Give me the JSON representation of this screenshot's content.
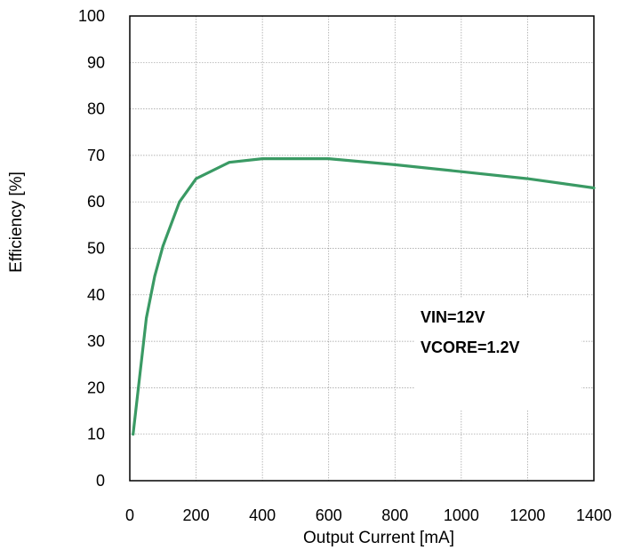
{
  "chart_data": {
    "type": "line",
    "title": "",
    "xlabel": "Output Current [mA]",
    "ylabel": "Efficiency [%]",
    "xlim": [
      0,
      1400
    ],
    "ylim": [
      0,
      100
    ],
    "xticks": [
      0,
      200,
      400,
      600,
      800,
      1000,
      1200,
      1400
    ],
    "yticks": [
      0,
      10,
      20,
      30,
      40,
      50,
      60,
      70,
      80,
      90,
      100
    ],
    "xtick_labels": [
      "0",
      "200",
      "400",
      "600",
      "800",
      "1000",
      "1200",
      "1400"
    ],
    "ytick_labels": [
      "0",
      "10",
      "20",
      "30",
      "40",
      "50",
      "60",
      "70",
      "80",
      "90",
      "100"
    ],
    "grid": true,
    "series": [
      {
        "color": "#3a9a64",
        "x": [
          10,
          50,
          75,
          100,
          150,
          200,
          300,
          400,
          600,
          800,
          1000,
          1200,
          1400
        ],
        "y": [
          10,
          35,
          44,
          50.5,
          60,
          65,
          68.5,
          69.3,
          69.3,
          68,
          66.5,
          65,
          63
        ]
      }
    ],
    "annotations": [
      "VIN=12V",
      "VCORE=1.2V"
    ]
  }
}
